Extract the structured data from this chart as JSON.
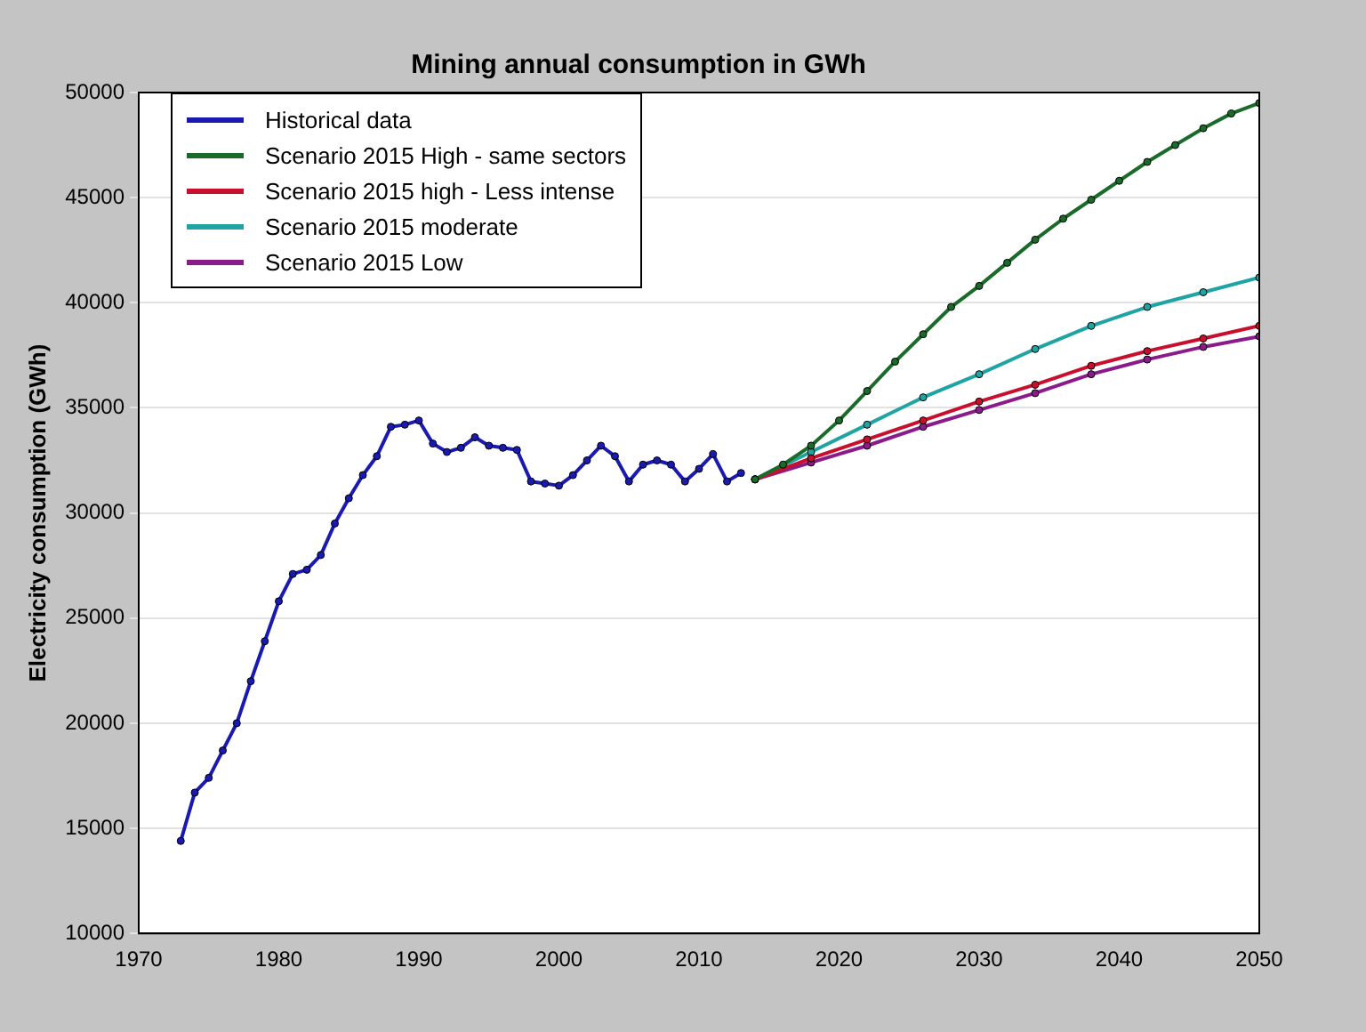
{
  "chart_data": {
    "type": "line",
    "title": "Mining annual consumption in GWh",
    "ylabel": "Electricity consumption (GWh)",
    "xlim": [
      1970,
      2050
    ],
    "xticks": [
      1970,
      1980,
      1990,
      2000,
      2010,
      2020,
      2030,
      2040,
      2050
    ],
    "ylim": [
      10000,
      50000
    ],
    "yticks": [
      10000,
      15000,
      20000,
      25000,
      30000,
      35000,
      40000,
      45000,
      50000
    ],
    "grid": "y",
    "legend": "top left",
    "marker": "circle",
    "line_style": "solid",
    "series": [
      {
        "name": "Historical data",
        "color": "#1a1ab0",
        "x": [
          1973,
          1974,
          1975,
          1976,
          1977,
          1978,
          1979,
          1980,
          1981,
          1982,
          1983,
          1984,
          1985,
          1986,
          1987,
          1988,
          1989,
          1990,
          1991,
          1992,
          1993,
          1994,
          1995,
          1996,
          1997,
          1998,
          1999,
          2000,
          2001,
          2002,
          2003,
          2004,
          2005,
          2006,
          2007,
          2008,
          2009,
          2010,
          2011,
          2012,
          2013
        ],
        "values": [
          14400,
          16700,
          17400,
          18700,
          20000,
          22000,
          23900,
          25800,
          27100,
          27300,
          28000,
          29500,
          30700,
          31800,
          32700,
          34100,
          34200,
          34400,
          33300,
          32900,
          33100,
          33600,
          33200,
          33100,
          33000,
          31500,
          31400,
          31300,
          31800,
          32500,
          33200,
          32700,
          31500,
          32300,
          32500,
          32300,
          31500,
          32100,
          32800,
          31500,
          31900
        ]
      },
      {
        "name": "Scenario 2015 High - same sectors",
        "color": "#1a6b2a",
        "x": [
          2014,
          2016,
          2018,
          2020,
          2022,
          2024,
          2026,
          2028,
          2030,
          2032,
          2034,
          2036,
          2038,
          2040,
          2042,
          2044,
          2046,
          2048,
          2050
        ],
        "values": [
          31600,
          32300,
          33200,
          34400,
          35800,
          37200,
          38500,
          39800,
          40800,
          41900,
          43000,
          44000,
          44900,
          45800,
          46700,
          47500,
          48300,
          49000,
          49500
        ]
      },
      {
        "name": "Scenario 2015 high - Less intense",
        "color": "#c8102e",
        "x": [
          2014,
          2018,
          2022,
          2026,
          2030,
          2034,
          2038,
          2042,
          2046,
          2050
        ],
        "values": [
          31600,
          32600,
          33500,
          34400,
          35300,
          36100,
          37000,
          37700,
          38300,
          38900
        ]
      },
      {
        "name": "Scenario 2015 moderate",
        "color": "#1fa3a3",
        "x": [
          2014,
          2018,
          2022,
          2026,
          2030,
          2034,
          2038,
          2042,
          2046,
          2050
        ],
        "values": [
          31600,
          32900,
          34200,
          35500,
          36600,
          37800,
          38900,
          39800,
          40500,
          41200
        ]
      },
      {
        "name": "Scenario 2015 Low",
        "color": "#8b1a8b",
        "x": [
          2014,
          2018,
          2022,
          2026,
          2030,
          2034,
          2038,
          2042,
          2046,
          2050
        ],
        "values": [
          31600,
          32400,
          33200,
          34100,
          34900,
          35700,
          36600,
          37300,
          37900,
          38400
        ]
      }
    ]
  }
}
